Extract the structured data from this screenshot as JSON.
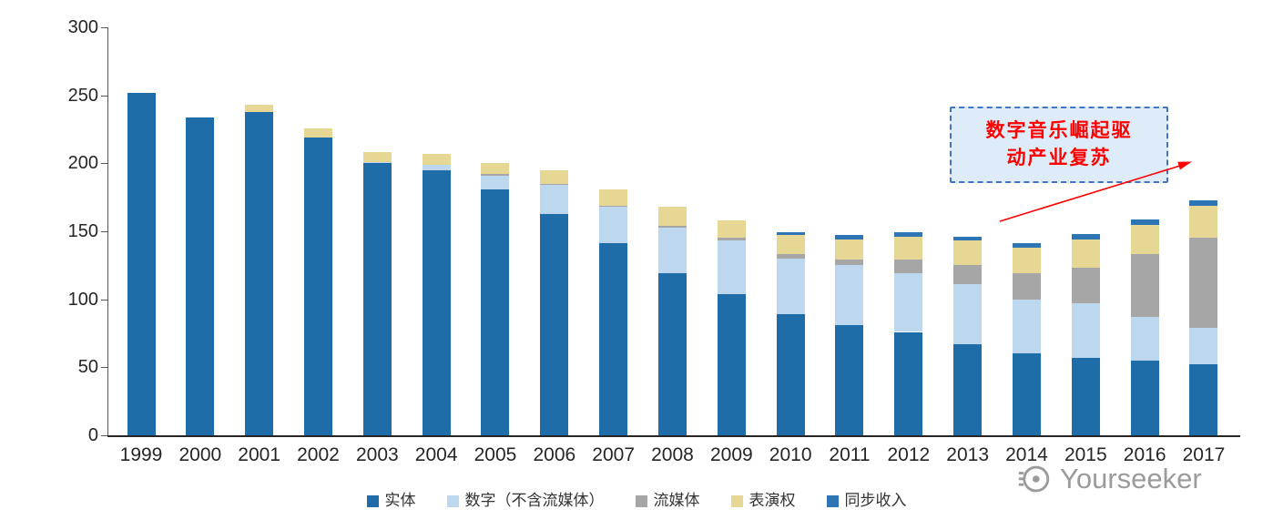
{
  "chart_data": {
    "type": "bar",
    "stacked": true,
    "title": "",
    "xlabel": "",
    "ylabel": "",
    "ylim": [
      0,
      300
    ],
    "y_ticks": [
      0,
      50,
      100,
      150,
      200,
      250,
      300
    ],
    "grid": false,
    "legend_position": "bottom",
    "categories": [
      "1999",
      "2000",
      "2001",
      "2002",
      "2003",
      "2004",
      "2005",
      "2006",
      "2007",
      "2008",
      "2009",
      "2010",
      "2011",
      "2012",
      "2013",
      "2014",
      "2015",
      "2016",
      "2017"
    ],
    "series": [
      {
        "name": "实体",
        "color": "#1E6DA9",
        "values": [
          252,
          234,
          238,
          219,
          200,
          195,
          181,
          163,
          141,
          119,
          104,
          89,
          81,
          76,
          67,
          60,
          57,
          55,
          52
        ]
      },
      {
        "name": "数字（不含流媒体）",
        "color": "#BDD7EE",
        "values": [
          0,
          0,
          0,
          0,
          1,
          4,
          10,
          21,
          27,
          34,
          39,
          41,
          44,
          43,
          44,
          40,
          40,
          32,
          27
        ]
      },
      {
        "name": "流媒体",
        "color": "#A6A6A6",
        "values": [
          0,
          0,
          0,
          0,
          0,
          0,
          1,
          1,
          1,
          1,
          2,
          3,
          4,
          10,
          14,
          19,
          26,
          46,
          66
        ]
      },
      {
        "name": "表演权",
        "color": "#E6D795",
        "values": [
          0,
          0,
          5,
          7,
          7,
          8,
          8,
          10,
          12,
          14,
          13,
          14,
          15,
          17,
          18,
          19,
          21,
          22,
          24
        ]
      },
      {
        "name": "同步收入",
        "color": "#2E75B6",
        "values": [
          0,
          0,
          0,
          0,
          0,
          0,
          0,
          0,
          0,
          0,
          0,
          2,
          3,
          3,
          3,
          3,
          4,
          4,
          4
        ]
      }
    ]
  },
  "annotation": {
    "line1": "数字音乐崛起驱",
    "line2": "动产业复苏",
    "text_color": "#FF0000",
    "border_color": "#4472C4",
    "bg_color": "#DEEBF8",
    "arrow_color": "#FF0000"
  },
  "watermark": {
    "text": "Yourseeker"
  }
}
